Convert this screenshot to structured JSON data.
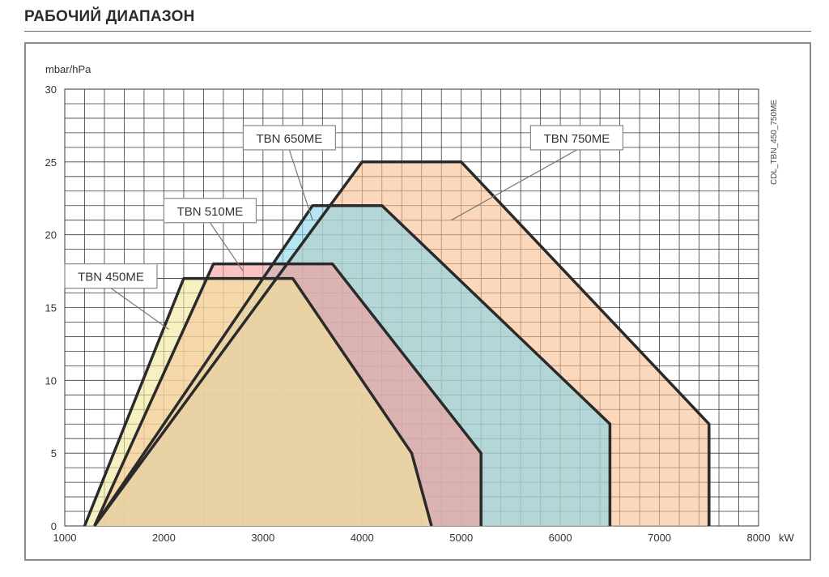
{
  "header": {
    "title": "РАБОЧИЙ ДИАПАЗОН"
  },
  "chart_data": {
    "type": "area",
    "title": "",
    "side_label": "CDL_TBN_450_750ME",
    "xlabel": "kW",
    "ylabel": "mbar/hPa",
    "xlim": [
      1000,
      8000
    ],
    "ylim": [
      0,
      30
    ],
    "x_ticks": [
      1000,
      2000,
      3000,
      4000,
      5000,
      6000,
      7000,
      8000
    ],
    "y_ticks": [
      0,
      5,
      10,
      15,
      20,
      25,
      30
    ],
    "grid": true,
    "series": [
      {
        "name": "TBN 750ME",
        "fill": "#f9be8f",
        "stroke": "#2a2a2a",
        "points": [
          [
            1300,
            0
          ],
          [
            4000,
            25
          ],
          [
            5000,
            25
          ],
          [
            7500,
            7
          ],
          [
            7500,
            0
          ]
        ]
      },
      {
        "name": "TBN 650ME",
        "fill": "#86d6e8",
        "stroke": "#2a2a2a",
        "points": [
          [
            1300,
            0
          ],
          [
            3500,
            22
          ],
          [
            4200,
            22
          ],
          [
            6500,
            7
          ],
          [
            6500,
            0
          ]
        ]
      },
      {
        "name": "TBN 510ME",
        "fill": "#f59b9b",
        "stroke": "#2a2a2a",
        "points": [
          [
            1300,
            0
          ],
          [
            2500,
            18
          ],
          [
            3700,
            18
          ],
          [
            5200,
            5
          ],
          [
            5200,
            0
          ]
        ]
      },
      {
        "name": "TBN 450ME",
        "fill": "#f2e79a",
        "stroke": "#2a2a2a",
        "points": [
          [
            1200,
            0
          ],
          [
            2200,
            17
          ],
          [
            3300,
            17
          ],
          [
            4500,
            5
          ],
          [
            4700,
            0
          ]
        ]
      }
    ],
    "legend_labels": [
      {
        "text": "TBN 750ME",
        "box": [
          5700,
          27.5
        ],
        "target": [
          4900,
          21
        ]
      },
      {
        "text": "TBN 650ME",
        "box": [
          2800,
          27.5
        ],
        "target": [
          3500,
          21
        ]
      },
      {
        "text": "TBN 510ME",
        "box": [
          2000,
          22.5
        ],
        "target": [
          2800,
          17.5
        ]
      },
      {
        "text": "TBN 450ME",
        "box": [
          1000,
          18
        ],
        "target": [
          2050,
          13.5
        ]
      }
    ]
  }
}
